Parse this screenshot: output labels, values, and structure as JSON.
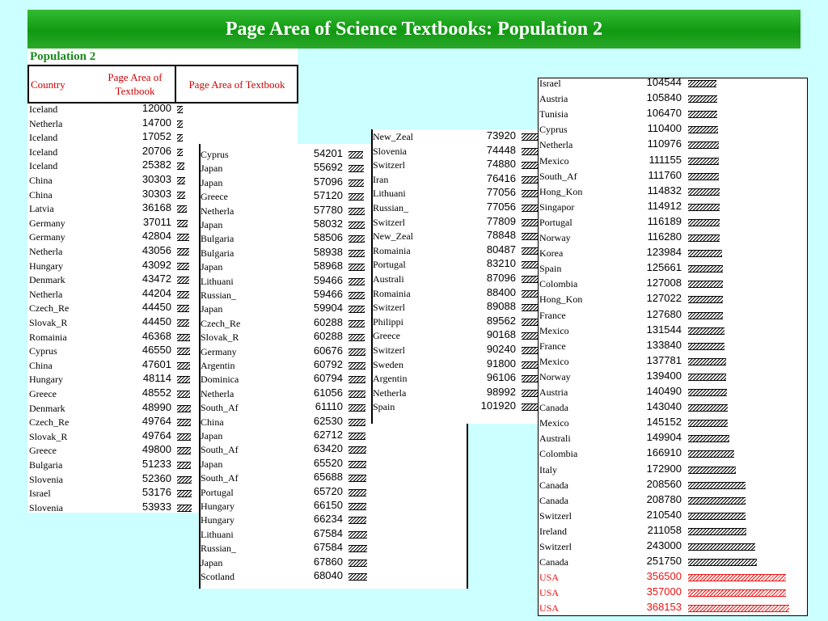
{
  "title": "Page Area of Science Textbooks: Population 2",
  "population_label": "Population 2",
  "header": {
    "country": "Country",
    "page_area": "Page Area of\nTextbook",
    "page_area_right": "Page Area of Textbook"
  },
  "columns": [
    {
      "rows": [
        [
          "Iceland",
          "12000"
        ],
        [
          "Netherla",
          "14700"
        ],
        [
          "Iceland",
          "17052"
        ],
        [
          "Iceland",
          "20706"
        ],
        [
          "Iceland",
          "25382"
        ],
        [
          "China",
          "30303"
        ],
        [
          "China",
          "30303"
        ],
        [
          "Latvia",
          "36168"
        ],
        [
          "Germany",
          "37011"
        ],
        [
          "Germany",
          "42804"
        ],
        [
          "Netherla",
          "43056"
        ],
        [
          "Hungary",
          "43092"
        ],
        [
          "Denmark",
          "43472"
        ],
        [
          "Netherla",
          "44204"
        ],
        [
          "Czech_Re",
          "44450"
        ],
        [
          "Slovak_R",
          "44450"
        ],
        [
          "Romainia",
          "46368"
        ],
        [
          "Cyprus",
          "46550"
        ],
        [
          "China",
          "47601"
        ],
        [
          "Hungary",
          "48114"
        ],
        [
          "Greece",
          "48552"
        ],
        [
          "Denmark",
          "48990"
        ],
        [
          "Czech_Re",
          "49764"
        ],
        [
          "Slovak_R",
          "49764"
        ],
        [
          "Greece",
          "49800"
        ],
        [
          "Bulgaria",
          "51233"
        ],
        [
          "Slovenia",
          "52360"
        ],
        [
          "Israel",
          "53176"
        ],
        [
          "Slovenia",
          "53933"
        ]
      ]
    },
    {
      "rows": [
        [
          "Cyprus",
          "54201"
        ],
        [
          "Japan",
          "55692"
        ],
        [
          "Japan",
          "57096"
        ],
        [
          "Greece",
          "57120"
        ],
        [
          "Netherla",
          "57780"
        ],
        [
          "Japan",
          "58032"
        ],
        [
          "Bulgaria",
          "58506"
        ],
        [
          "Bulgaria",
          "58938"
        ],
        [
          "Japan",
          "58968"
        ],
        [
          "Lithuani",
          "59466"
        ],
        [
          "Russian_",
          "59466"
        ],
        [
          "Japan",
          "59904"
        ],
        [
          "Czech_Re",
          "60288"
        ],
        [
          "Slovak_R",
          "60288"
        ],
        [
          "Germany",
          "60676"
        ],
        [
          "Argentin",
          "60792"
        ],
        [
          "Dominica",
          "60794"
        ],
        [
          "Netherla",
          "61056"
        ],
        [
          "South_Af",
          "61110"
        ],
        [
          "China",
          "62530"
        ],
        [
          "Japan",
          "62712"
        ],
        [
          "South_Af",
          "63420"
        ],
        [
          "Japan",
          "65520"
        ],
        [
          "South_Af",
          "65688"
        ],
        [
          "Portugal",
          "65720"
        ],
        [
          "Hungary",
          "66150"
        ],
        [
          "Hungary",
          "66234"
        ],
        [
          "Lithuani",
          "67584"
        ],
        [
          "Russian_",
          "67584"
        ],
        [
          "Japan",
          "67860"
        ],
        [
          "Scotland",
          "68040"
        ]
      ]
    },
    {
      "rows": [
        [
          "New_Zeal",
          "73920"
        ],
        [
          "Slovenia",
          "74448"
        ],
        [
          "Switzerl",
          "74880"
        ],
        [
          "Iran",
          "76416"
        ],
        [
          "Lithuani",
          "77056"
        ],
        [
          "Russian_",
          "77056"
        ],
        [
          "Switzerl",
          "77809"
        ],
        [
          "New_Zeal",
          "78848"
        ],
        [
          "Romainia",
          "80487"
        ],
        [
          "Portugal",
          "83210"
        ],
        [
          "Australi",
          "87096"
        ],
        [
          "Romainia",
          "88400"
        ],
        [
          "Switzerl",
          "89088"
        ],
        [
          "Philippi",
          "89562"
        ],
        [
          "Greece",
          "90168"
        ],
        [
          "Switzerl",
          "90240"
        ],
        [
          "Sweden",
          "91800"
        ],
        [
          "Argentin",
          "96106"
        ],
        [
          "Netherla",
          "98992"
        ],
        [
          "Spain",
          "101920"
        ]
      ]
    },
    {
      "rows": [
        [
          "Israel",
          "104544"
        ],
        [
          "Austria",
          "105840"
        ],
        [
          "Tunisia",
          "106470"
        ],
        [
          "Cyprus",
          "110400"
        ],
        [
          "Netherla",
          "110976"
        ],
        [
          "Mexico",
          "111155"
        ],
        [
          "South_Af",
          "111760"
        ],
        [
          "Hong_Kon",
          "114832"
        ],
        [
          "Singapor",
          "114912"
        ],
        [
          "Portugal",
          "116189"
        ],
        [
          "Norway",
          "116280"
        ],
        [
          "Korea",
          "123984"
        ],
        [
          "Spain",
          "125661"
        ],
        [
          "Colombia",
          "127008"
        ],
        [
          "Hong_Kon",
          "127022"
        ],
        [
          "France",
          "127680"
        ],
        [
          "Mexico",
          "131544"
        ],
        [
          "France",
          "133840"
        ],
        [
          "Mexico",
          "137781"
        ],
        [
          "Norway",
          "139400"
        ],
        [
          "Austria",
          "140490"
        ],
        [
          "Canada",
          "143040"
        ],
        [
          "Mexico",
          "145152"
        ],
        [
          "Australi",
          "149904"
        ],
        [
          "Colombia",
          "166910"
        ],
        [
          "Italy",
          "172900"
        ],
        [
          "Canada",
          "208560"
        ],
        [
          "Canada",
          "208780"
        ],
        [
          "Switzerl",
          "210540"
        ],
        [
          "Ireland",
          "211058"
        ],
        [
          "Switzerl",
          "243000"
        ],
        [
          "Canada",
          "251750"
        ],
        [
          "USA",
          "356500"
        ],
        [
          "USA",
          "357000"
        ],
        [
          "USA",
          "368153"
        ]
      ]
    }
  ],
  "highlight_country": "USA",
  "colors": {
    "banner": "#119911",
    "background": "#ccffff",
    "highlight": "#ee1111"
  }
}
